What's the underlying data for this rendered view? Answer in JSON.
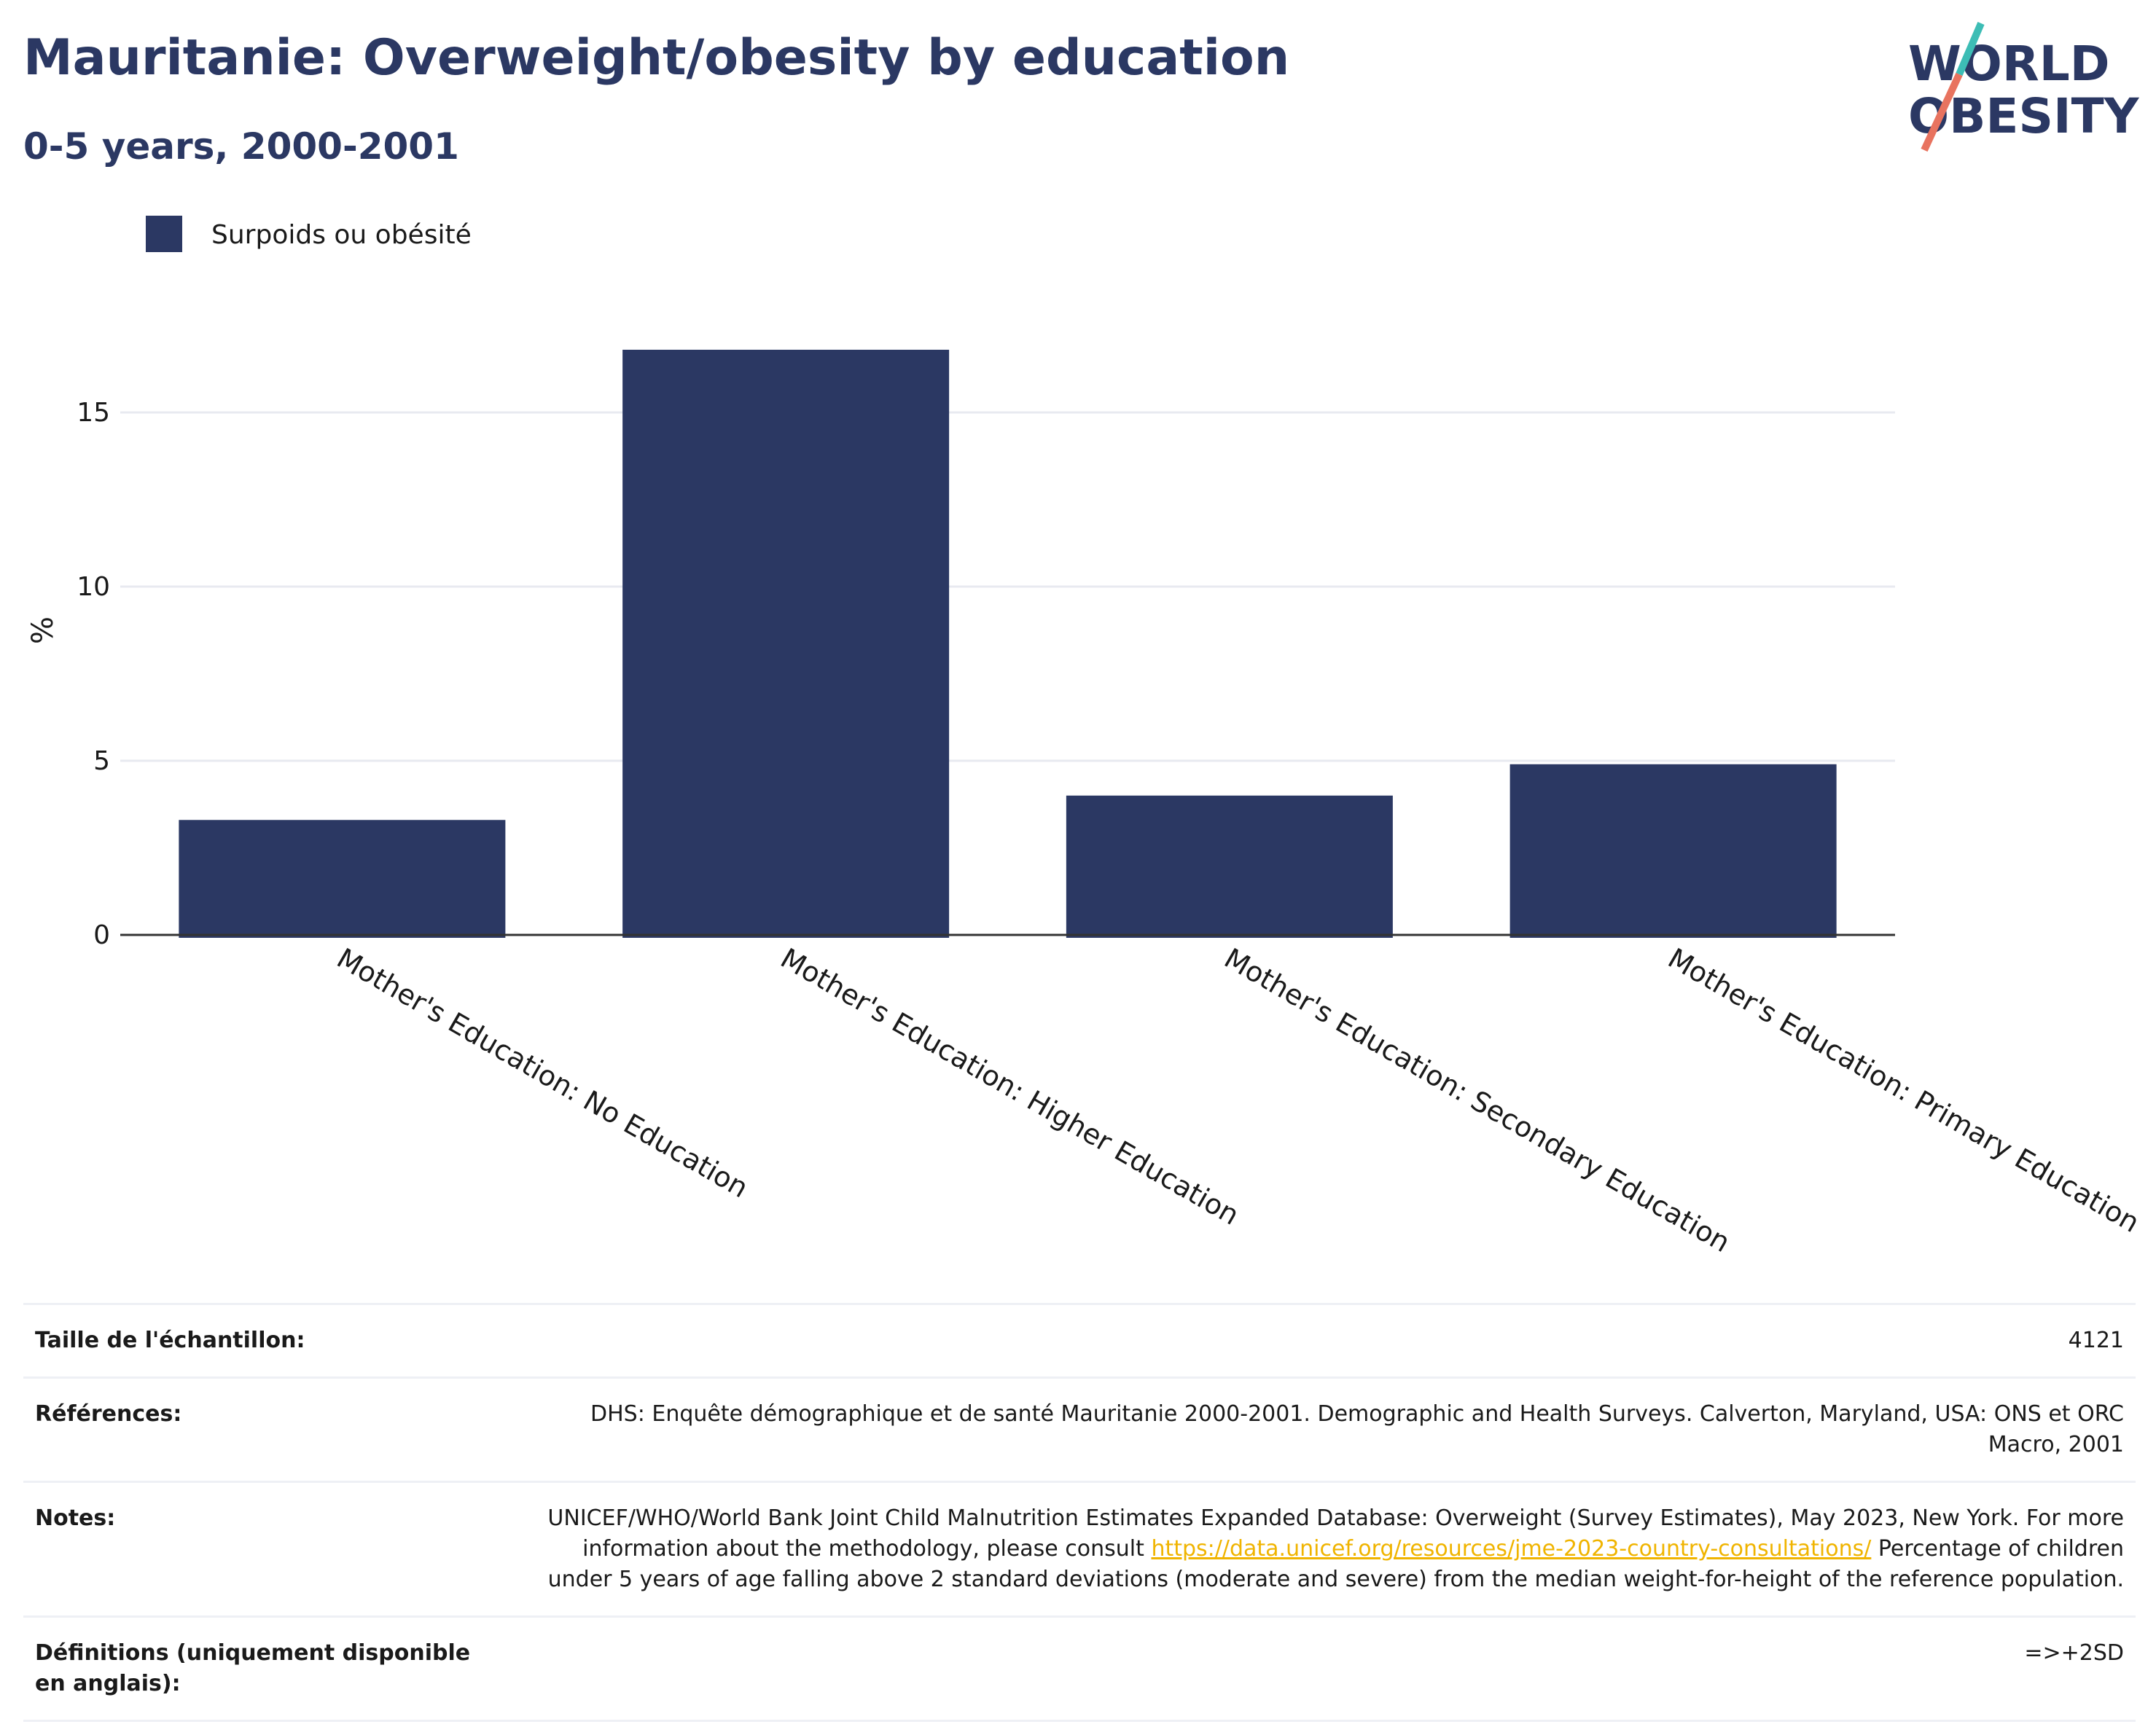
{
  "header": {
    "title": "Mauritanie: Overweight/obesity by education",
    "subtitle": "0-5 years, 2000-2001",
    "logo_line1": "WORLD",
    "logo_line2": "OBESITY"
  },
  "colors": {
    "bar": "#2b3863",
    "title": "#2b3863",
    "grid": "#e8eaf0",
    "logo_teal": "#3dbdb5",
    "logo_coral": "#e8735f"
  },
  "chart_data": {
    "type": "bar",
    "title": "Mauritanie: Overweight/obesity by education",
    "subtitle": "0-5 years, 2000-2001",
    "ylabel": "%",
    "xlabel": "",
    "ylim": [
      0,
      18
    ],
    "yticks": [
      0,
      5,
      10,
      15
    ],
    "grid": true,
    "legend_position": "top-left",
    "categories": [
      "Mother's Education: No Education",
      "Mother's Education: Higher Education",
      "Mother's Education: Secondary Education",
      "Mother's Education: Primary Education"
    ],
    "series": [
      {
        "name": "Surpoids ou obésité",
        "values": [
          3.3,
          16.8,
          4.0,
          4.9
        ]
      }
    ]
  },
  "table": {
    "sample_label": "Taille de l'échantillon:",
    "sample_value": "4121",
    "refs_label": "Références:",
    "refs_value": "DHS: Enquête démographique et de santé Mauritanie 2000-2001. Demographic and Health Surveys. Calverton, Maryland, USA: ONS et ORC Macro, 2001",
    "notes_label": "Notes:",
    "notes_text1": "UNICEF/WHO/World Bank Joint Child Malnutrition Estimates Expanded Database: Overweight (Survey Estimates), May 2023, New York. For more information about the methodology, please consult ",
    "notes_link": "https://data.unicef.org/resources/jme-2023-country-consultations/",
    "notes_text2": " Percentage of children under 5 years of age falling above 2 standard deviations (moderate and severe) from the median weight-for-height of the reference population.",
    "defs_label": "Définitions (uniquement disponible en anglais):",
    "defs_value": "=>+2SD"
  }
}
